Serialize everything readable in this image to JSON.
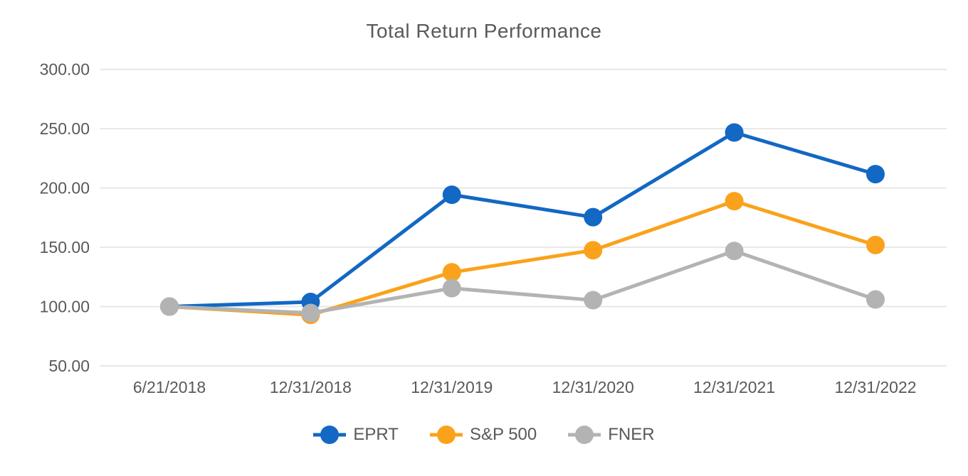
{
  "chart_data": {
    "type": "line",
    "title": "Total Return Performance",
    "categories": [
      "6/21/2018",
      "12/31/2018",
      "12/31/2019",
      "12/31/2020",
      "12/31/2021",
      "12/31/2022"
    ],
    "series": [
      {
        "name": "EPRT",
        "color": "#1268C3",
        "values": [
          100.0,
          103.9,
          194.3,
          175.4,
          246.8,
          211.7
        ]
      },
      {
        "name": "S&P 500",
        "color": "#FAA21B",
        "values": [
          100.0,
          93.0,
          128.9,
          147.5,
          188.9,
          151.9
        ]
      },
      {
        "name": "FNER",
        "color": "#B3B3B3",
        "values": [
          100.0,
          94.6,
          115.5,
          105.4,
          146.9,
          106.0
        ]
      }
    ],
    "y_ticks": [
      {
        "label": "300.00",
        "value": 300
      },
      {
        "label": "250.00",
        "value": 250
      },
      {
        "label": "200.00",
        "value": 200
      },
      {
        "label": "150.00",
        "value": 150
      },
      {
        "label": "100.00",
        "value": 100
      },
      {
        "label": "50.00",
        "value": 50
      }
    ],
    "ylim": [
      50,
      300
    ],
    "grid": true,
    "legend_position": "bottom",
    "marker": "circle",
    "axis_text_color": "#595959",
    "gridline_color": "#E7E7E7",
    "background_color": "#FFFFFF"
  }
}
